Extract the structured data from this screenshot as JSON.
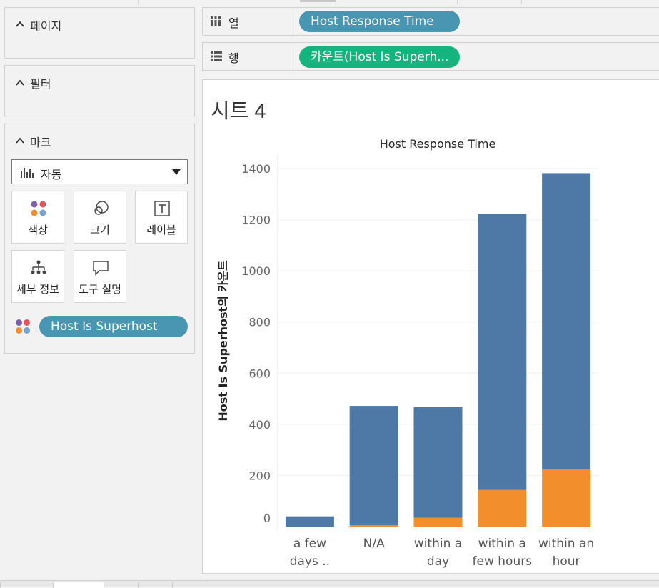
{
  "left_panel": {
    "pages": {
      "title": "페이지"
    },
    "filters": {
      "title": "필터"
    },
    "marks": {
      "title": "마크",
      "mark_type": "자동",
      "buttons": {
        "color": "색상",
        "size": "크기",
        "label": "레이블",
        "detail": "세부 정보",
        "tooltip": "도구 설명"
      },
      "color_field": "Host Is Superhost"
    }
  },
  "shelves": {
    "columns": {
      "label": "열",
      "pill": "Host Response Time"
    },
    "rows": {
      "label": "행",
      "pill": "카운트(Host Is Superh..."
    }
  },
  "sheet": {
    "title": "시트 4"
  },
  "colors": {
    "series_blue": "#4e79a7",
    "series_orange": "#f28e2b",
    "pill_blue": "#4996b2",
    "pill_green": "#15b37d"
  },
  "chart_data": {
    "type": "bar",
    "stacked": true,
    "title": "Host Response Time",
    "xlabel": "",
    "ylabel": "Host Is Superhost의 카운트",
    "categories": [
      [
        "a few",
        "days .."
      ],
      [
        "N/A"
      ],
      [
        "within a",
        "day"
      ],
      [
        "within a",
        "few hours"
      ],
      [
        "within an",
        "hour"
      ]
    ],
    "series": [
      {
        "color": "#f28e2b",
        "values": [
          0,
          5,
          35,
          143,
          225
        ]
      },
      {
        "color": "#4e79a7",
        "values": [
          40,
          467,
          433,
          1080,
          1157
        ]
      }
    ],
    "ylim": [
      0,
      1400
    ],
    "yticks": [
      0,
      200,
      400,
      600,
      800,
      1000,
      1200,
      1400
    ],
    "grid": true
  }
}
